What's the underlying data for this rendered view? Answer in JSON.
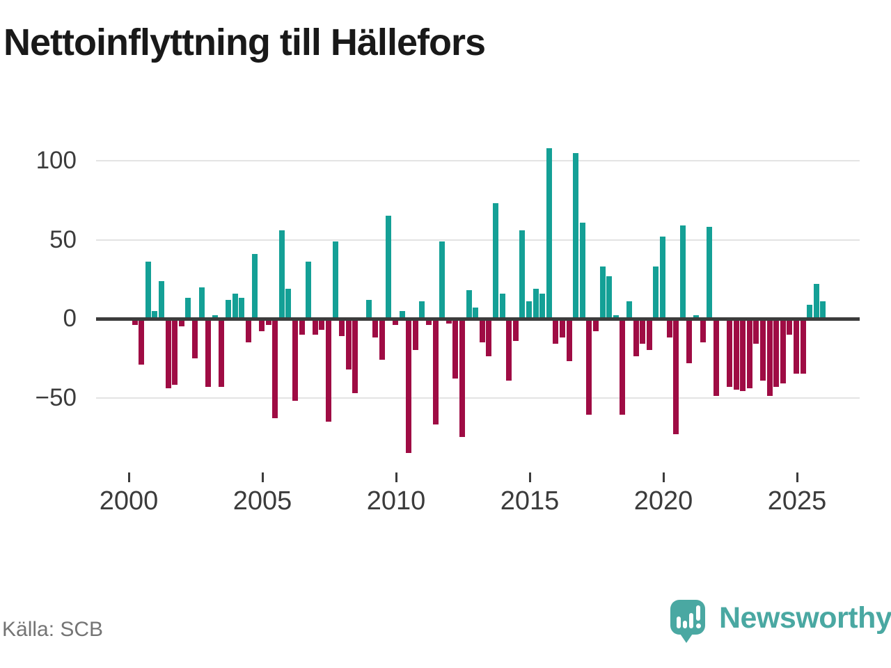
{
  "title": "Nettoinflyttning till Hällefors",
  "source": "Källa: SCB",
  "brand": {
    "name": "Newsworthy",
    "color": "#4aa8a2"
  },
  "colors": {
    "positive": "#14a096",
    "negative": "#9f0c44",
    "grid": "#e3e3e3",
    "axis": "#3c3c3c",
    "tick_label": "#3b3b3b",
    "source_text": "#747474"
  },
  "chart_data": {
    "type": "bar",
    "title": "Nettoinflyttning till Hällefors",
    "xlabel": "",
    "ylabel": "",
    "frequency": "quarterly",
    "start_year": 2000,
    "quarters_per_year": 4,
    "x_tick_labels": [
      "2000",
      "2005",
      "2010",
      "2015",
      "2020",
      "2025"
    ],
    "y_ticks": [
      100,
      50,
      0,
      -50
    ],
    "y_tick_labels": [
      "100",
      "50",
      "0",
      "−50"
    ],
    "ylim": [
      -95,
      120
    ],
    "grid": true,
    "legend": false,
    "values": [
      -4,
      -29,
      36,
      5,
      24,
      -44,
      -42,
      -5,
      13,
      -25,
      20,
      -43,
      2,
      -43,
      12,
      16,
      13,
      -15,
      41,
      -8,
      -4,
      -63,
      56,
      19,
      -52,
      -10,
      36,
      -10,
      -7,
      -65,
      49,
      -11,
      -32,
      -47,
      0,
      12,
      -12,
      -26,
      65,
      -4,
      5,
      -85,
      -20,
      11,
      -4,
      -67,
      49,
      -3,
      -38,
      -75,
      18,
      7,
      -15,
      -24,
      73,
      16,
      -39,
      -14,
      56,
      11,
      19,
      16,
      108,
      -16,
      -12,
      -27,
      105,
      61,
      -61,
      -8,
      33,
      27,
      2,
      -61,
      11,
      -24,
      -16,
      -20,
      33,
      52,
      -12,
      -73,
      59,
      -28,
      2,
      -15,
      58,
      -49,
      0,
      -43,
      -45,
      -46,
      -44,
      -16,
      -39,
      -49,
      -43,
      -41,
      -10,
      -35,
      -35,
      9,
      22,
      11
    ]
  }
}
